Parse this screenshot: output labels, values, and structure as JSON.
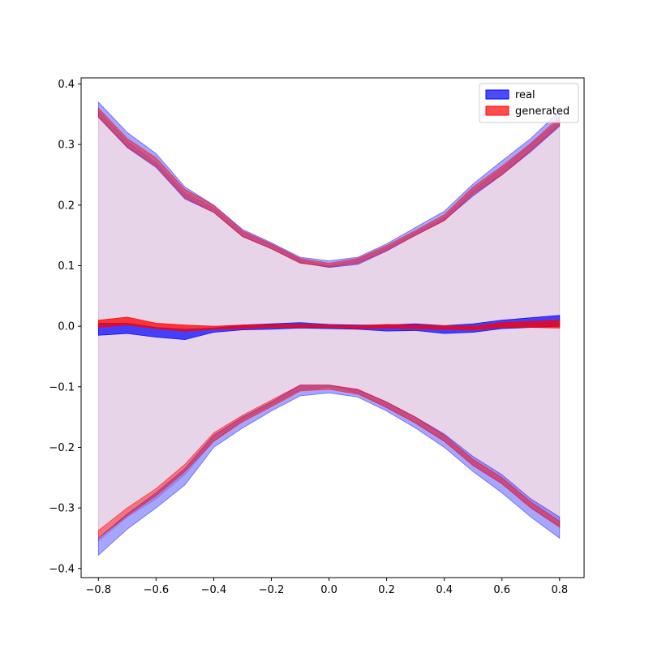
{
  "chart_data": {
    "type": "area",
    "title": "",
    "xlabel": "",
    "ylabel": "",
    "xlim": [
      -0.86,
      0.885
    ],
    "ylim": [
      -0.415,
      0.41
    ],
    "grid": false,
    "legend_position": "top-right",
    "x_ticks": [
      -0.8,
      -0.6,
      -0.4,
      -0.2,
      0.0,
      0.2,
      0.4,
      0.6,
      0.8
    ],
    "x_tick_labels": [
      "−0.8",
      "−0.6",
      "−0.4",
      "−0.2",
      "0.0",
      "0.2",
      "0.4",
      "0.6",
      "0.8"
    ],
    "y_ticks": [
      0.4,
      0.3,
      0.2,
      0.1,
      0.0,
      -0.1,
      -0.2,
      -0.3,
      -0.4
    ],
    "y_tick_labels": [
      "0.4",
      "0.3",
      "0.2",
      "0.1",
      "0.0",
      "−0.1",
      "−0.2",
      "−0.3",
      "−0.4"
    ],
    "x": [
      -0.8,
      -0.7,
      -0.6,
      -0.5,
      -0.4,
      -0.3,
      -0.2,
      -0.1,
      0.0,
      0.1,
      0.2,
      0.3,
      0.4,
      0.5,
      0.6,
      0.7,
      0.8
    ],
    "envelope": {
      "color": "#e8d4e8",
      "upper": [
        0.355,
        0.305,
        0.27,
        0.22,
        0.195,
        0.155,
        0.135,
        0.11,
        0.1,
        0.11,
        0.13,
        0.155,
        0.18,
        0.225,
        0.26,
        0.3,
        0.34
      ],
      "lower": [
        -0.355,
        -0.315,
        -0.285,
        -0.245,
        -0.19,
        -0.155,
        -0.13,
        -0.105,
        -0.1,
        -0.11,
        -0.135,
        -0.16,
        -0.19,
        -0.23,
        -0.26,
        -0.3,
        -0.33
      ]
    },
    "series": [
      {
        "name": "real",
        "color": "#0000ff",
        "bands": [
          {
            "kind": "upper",
            "alpha": 0.35,
            "high": [
              0.37,
              0.32,
              0.285,
              0.23,
              0.2,
              0.16,
              0.138,
              0.114,
              0.108,
              0.114,
              0.136,
              0.163,
              0.19,
              0.235,
              0.273,
              0.31,
              0.355
            ],
            "low": [
              0.345,
              0.295,
              0.262,
              0.21,
              0.188,
              0.148,
              0.128,
              0.105,
              0.097,
              0.102,
              0.124,
              0.15,
              0.175,
              0.215,
              0.25,
              0.288,
              0.33
            ]
          },
          {
            "kind": "mean",
            "alpha": 0.7,
            "high": [
              0.005,
              0.005,
              -0.002,
              -0.005,
              -0.003,
              0.002,
              0.004,
              0.006,
              0.003,
              0.002,
              0.002,
              0.004,
              0.001,
              0.004,
              0.01,
              0.014,
              0.018
            ],
            "low": [
              -0.015,
              -0.012,
              -0.018,
              -0.022,
              -0.01,
              -0.006,
              -0.005,
              -0.003,
              -0.004,
              -0.005,
              -0.008,
              -0.007,
              -0.012,
              -0.01,
              -0.004,
              -0.002,
              0.0
            ]
          },
          {
            "kind": "lower",
            "alpha": 0.35,
            "high": [
              -0.35,
              -0.31,
              -0.275,
              -0.235,
              -0.18,
              -0.15,
              -0.125,
              -0.097,
              -0.097,
              -0.105,
              -0.125,
              -0.15,
              -0.178,
              -0.215,
              -0.245,
              -0.285,
              -0.315
            ],
            "low": [
              -0.378,
              -0.335,
              -0.3,
              -0.262,
              -0.2,
              -0.168,
              -0.14,
              -0.115,
              -0.11,
              -0.117,
              -0.14,
              -0.168,
              -0.2,
              -0.24,
              -0.275,
              -0.315,
              -0.35
            ]
          }
        ]
      },
      {
        "name": "generated",
        "color": "#ff0000",
        "bands": [
          {
            "kind": "upper",
            "alpha": 0.45,
            "high": [
              0.36,
              0.31,
              0.278,
              0.226,
              0.2,
              0.158,
              0.136,
              0.112,
              0.104,
              0.112,
              0.133,
              0.158,
              0.184,
              0.23,
              0.264,
              0.302,
              0.345
            ],
            "low": [
              0.345,
              0.296,
              0.264,
              0.212,
              0.188,
              0.148,
              0.128,
              0.104,
              0.098,
              0.104,
              0.125,
              0.15,
              0.174,
              0.218,
              0.25,
              0.29,
              0.332
            ]
          },
          {
            "kind": "mean",
            "alpha": 0.75,
            "high": [
              0.01,
              0.015,
              0.005,
              0.002,
              0.0,
              0.002,
              0.003,
              0.003,
              0.002,
              0.001,
              0.003,
              0.002,
              0.001,
              0.0,
              0.006,
              0.008,
              0.01
            ],
            "low": [
              -0.002,
              0.002,
              -0.004,
              -0.008,
              -0.005,
              -0.004,
              -0.002,
              -0.002,
              -0.002,
              -0.004,
              -0.003,
              -0.004,
              -0.005,
              -0.006,
              -0.002,
              -0.002,
              -0.003
            ]
          },
          {
            "kind": "lower",
            "alpha": 0.45,
            "high": [
              -0.337,
              -0.3,
              -0.268,
              -0.228,
              -0.176,
              -0.147,
              -0.122,
              -0.097,
              -0.097,
              -0.104,
              -0.125,
              -0.15,
              -0.18,
              -0.22,
              -0.25,
              -0.29,
              -0.322
            ],
            "low": [
              -0.35,
              -0.313,
              -0.28,
              -0.24,
              -0.19,
              -0.158,
              -0.133,
              -0.107,
              -0.104,
              -0.112,
              -0.134,
              -0.16,
              -0.19,
              -0.23,
              -0.26,
              -0.3,
              -0.332
            ]
          }
        ]
      }
    ],
    "legend": [
      {
        "label": "real",
        "color": "#0000ff"
      },
      {
        "label": "generated",
        "color": "#ff0000"
      }
    ]
  }
}
